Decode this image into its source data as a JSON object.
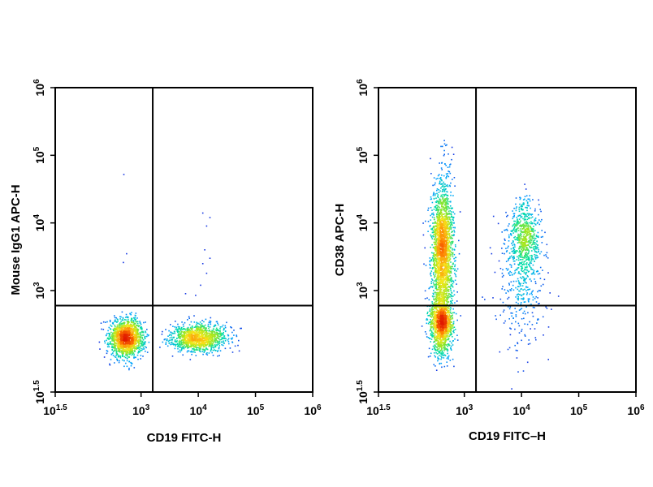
{
  "chart_data": [
    {
      "type": "scatter",
      "subtype": "flow-cytometry-density-dot-plot",
      "xlabel": "CD19 FITC-H",
      "ylabel": "Mouse IgG1 APC-H",
      "x_scale": "log",
      "y_scale": "log",
      "xlim": [
        31.6,
        1000000
      ],
      "ylim": [
        31.6,
        1000000
      ],
      "x_ticks": [
        {
          "value": 31.6,
          "base": "10",
          "exp": "1.5"
        },
        {
          "value": 1000,
          "base": "10",
          "exp": "3"
        },
        {
          "value": 10000,
          "base": "10",
          "exp": "4"
        },
        {
          "value": 100000,
          "base": "10",
          "exp": "5"
        },
        {
          "value": 1000000,
          "base": "10",
          "exp": "6"
        }
      ],
      "y_ticks": [
        {
          "value": 31.6,
          "base": "10",
          "exp": "1.5"
        },
        {
          "value": 1000,
          "base": "10",
          "exp": "3"
        },
        {
          "value": 10000,
          "base": "10",
          "exp": "4"
        },
        {
          "value": 100000,
          "base": "10",
          "exp": "5"
        },
        {
          "value": 1000000,
          "base": "10",
          "exp": "6"
        }
      ],
      "quadrant_gate": {
        "x": 1600,
        "y": 600
      },
      "populations": [
        {
          "center_log": [
            2.75,
            2.3
          ],
          "spread_log": [
            0.15,
            0.14
          ],
          "events": 1500
        },
        {
          "center_log": [
            4.0,
            2.3
          ],
          "spread_log": [
            0.24,
            0.1
          ],
          "events": 1200
        }
      ],
      "outlier_events": [
        {
          "x": 500,
          "y": 52000
        },
        {
          "x": 560,
          "y": 3500
        },
        {
          "x": 490,
          "y": 2600
        },
        {
          "x": 12000,
          "y": 14000
        },
        {
          "x": 16000,
          "y": 12000
        },
        {
          "x": 14000,
          "y": 9000
        },
        {
          "x": 13000,
          "y": 4000
        },
        {
          "x": 16000,
          "y": 3000
        },
        {
          "x": 12000,
          "y": 2500
        },
        {
          "x": 14000,
          "y": 1800
        },
        {
          "x": 11000,
          "y": 1200
        },
        {
          "x": 6000,
          "y": 900
        },
        {
          "x": 9000,
          "y": 850
        }
      ]
    },
    {
      "type": "scatter",
      "subtype": "flow-cytometry-density-dot-plot",
      "xlabel": "CD19 FITC–H",
      "ylabel": "CD38 APC-H",
      "x_scale": "log",
      "y_scale": "log",
      "xlim": [
        31.6,
        1000000
      ],
      "ylim": [
        31.6,
        1000000
      ],
      "x_ticks": [
        {
          "value": 31.6,
          "base": "10",
          "exp": "1.5"
        },
        {
          "value": 1000,
          "base": "10",
          "exp": "3"
        },
        {
          "value": 10000,
          "base": "10",
          "exp": "4"
        },
        {
          "value": 100000,
          "base": "10",
          "exp": "5"
        },
        {
          "value": 1000000,
          "base": "10",
          "exp": "6"
        }
      ],
      "y_ticks": [
        {
          "value": 31.6,
          "base": "10",
          "exp": "1.5"
        },
        {
          "value": 1000,
          "base": "10",
          "exp": "3"
        },
        {
          "value": 10000,
          "base": "10",
          "exp": "4"
        },
        {
          "value": 100000,
          "base": "10",
          "exp": "5"
        },
        {
          "value": 1000000,
          "base": "10",
          "exp": "6"
        }
      ],
      "quadrant_gate": {
        "x": 1600,
        "y": 600
      },
      "populations": [
        {
          "center_log": [
            2.6,
            2.5
          ],
          "spread_log": [
            0.1,
            0.22
          ],
          "events": 1200
        },
        {
          "center_log": [
            2.62,
            3.6
          ],
          "spread_log": [
            0.09,
            0.5
          ],
          "events": 2200
        },
        {
          "center_log": [
            4.05,
            3.8
          ],
          "spread_log": [
            0.13,
            0.28
          ],
          "events": 650
        },
        {
          "center_log": [
            4.0,
            3.1
          ],
          "spread_log": [
            0.22,
            0.45
          ],
          "events": 350
        }
      ],
      "outlier_events": []
    }
  ],
  "colors": {
    "density_scale": [
      "#1a1adc",
      "#00a6ff",
      "#00e0a0",
      "#9ae61e",
      "#f5e61a",
      "#ff7a00",
      "#e01a00"
    ],
    "axis": "#000000"
  }
}
